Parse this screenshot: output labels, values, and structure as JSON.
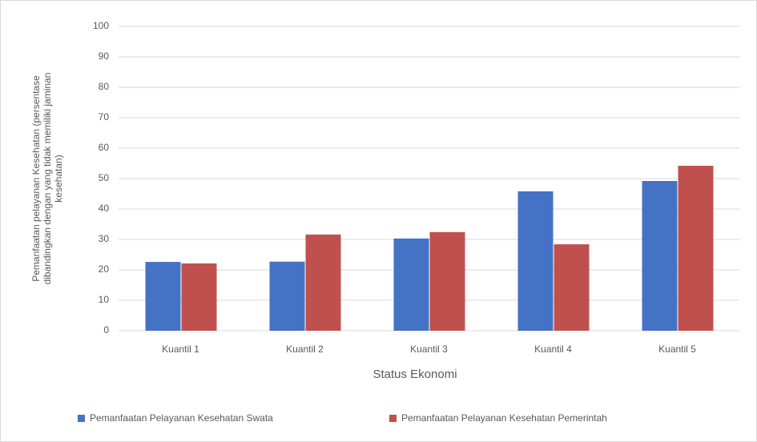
{
  "chart_data": {
    "type": "bar",
    "categories": [
      "Kuantil 1",
      "Kuantil 2",
      "Kuantil 3",
      "Kuantil 4",
      "Kuantil 5"
    ],
    "series": [
      {
        "name": "Pemanfaatan Pelayanan Kesehatan Swata",
        "color": "#4472c4",
        "values": [
          22.6,
          22.7,
          30.3,
          45.8,
          49.2
        ]
      },
      {
        "name": "Pemanfaatan Pelayanan Kesehatan Pemerintah",
        "color": "#c0504d",
        "values": [
          22.1,
          31.6,
          32.4,
          28.4,
          54.2
        ]
      }
    ],
    "x_label": "Status Ekonomi",
    "y_label": [
      "Pemanfaatan pelayanan Kesehatan (persentase",
      "dibandingkan dengan yang tidak memiliki jaminan",
      "kesehatan)"
    ],
    "ylim": [
      0,
      100
    ],
    "yticks": [
      0,
      10,
      20,
      30,
      40,
      50,
      60,
      70,
      80,
      90,
      100
    ],
    "grid": true,
    "legend": "bottom"
  }
}
